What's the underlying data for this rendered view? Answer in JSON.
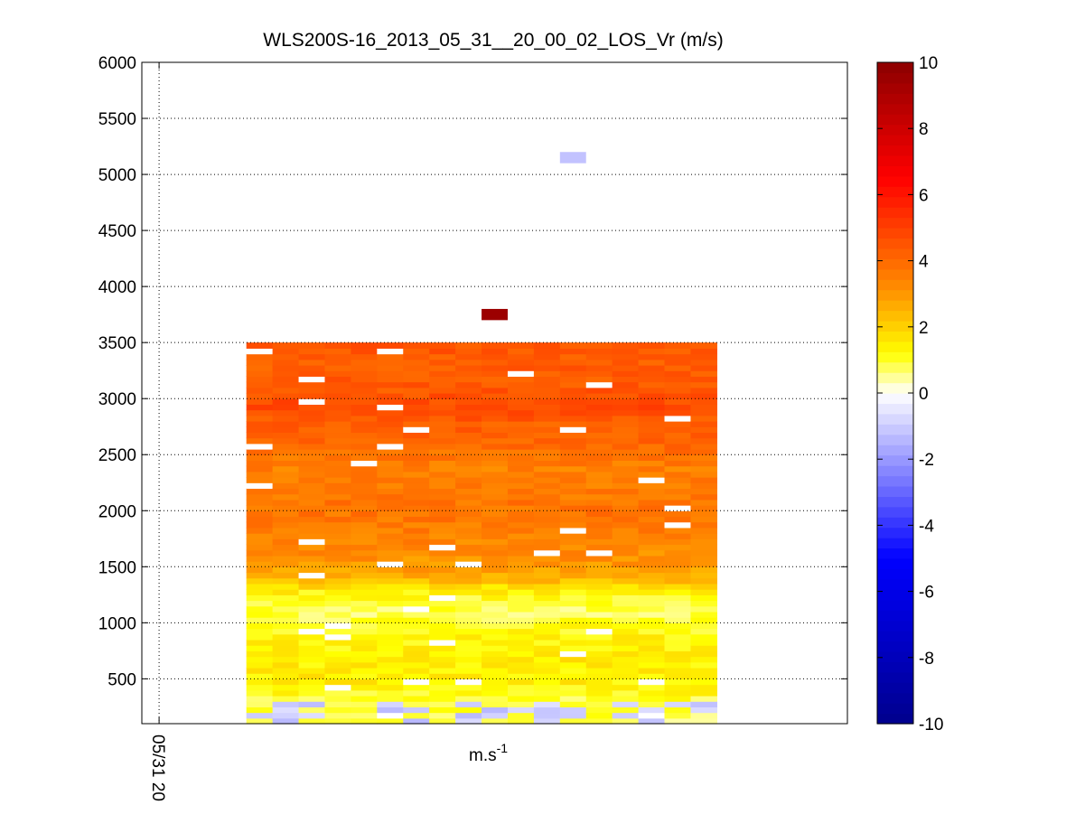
{
  "chart_data": {
    "type": "heatmap",
    "title": "WLS200S-16_2013_05_31__20_00_02_LOS_Vr (m/s)",
    "xlabel": "m.s",
    "xlabel_superscript": "-1",
    "x_tick_labels": [
      "05/31 20"
    ],
    "y_tick_labels": [
      "500",
      "1000",
      "1500",
      "2000",
      "2500",
      "3000",
      "3500",
      "4000",
      "4500",
      "5000",
      "5500",
      "6000"
    ],
    "ylim": [
      100,
      6000
    ],
    "grid": true,
    "colormap": "blue-white-yellow-red",
    "colorbar": {
      "range": [
        -10,
        10
      ],
      "tick_labels": [
        "10",
        "8",
        "6",
        "4",
        "2",
        "0",
        "-2",
        "-4",
        "-6",
        "-8",
        "-10"
      ]
    },
    "n_columns": 18,
    "columns_start_index": 4,
    "columns_end_index": 21,
    "columns_total": 27,
    "profile": [
      {
        "y": 200,
        "v": 0.8
      },
      {
        "y": 300,
        "v": 0.9
      },
      {
        "y": 400,
        "v": 1.3
      },
      {
        "y": 500,
        "v": 1.5
      },
      {
        "y": 600,
        "v": 1.4
      },
      {
        "y": 700,
        "v": 1.6
      },
      {
        "y": 800,
        "v": 1.3
      },
      {
        "y": 900,
        "v": 1.3
      },
      {
        "y": 1000,
        "v": 1.0
      },
      {
        "y": 1100,
        "v": 0.8
      },
      {
        "y": 1200,
        "v": 1.0
      },
      {
        "y": 1300,
        "v": 1.5
      },
      {
        "y": 1400,
        "v": 2.6
      },
      {
        "y": 1500,
        "v": 3.0
      },
      {
        "y": 1600,
        "v": 3.2
      },
      {
        "y": 1800,
        "v": 3.5
      },
      {
        "y": 2000,
        "v": 3.8
      },
      {
        "y": 2200,
        "v": 3.6
      },
      {
        "y": 2400,
        "v": 3.5
      },
      {
        "y": 2600,
        "v": 4.1
      },
      {
        "y": 2800,
        "v": 4.3
      },
      {
        "y": 2900,
        "v": 4.9
      },
      {
        "y": 3100,
        "v": 4.4
      },
      {
        "y": 3300,
        "v": 4.3
      },
      {
        "y": 3500,
        "v": 4.5
      }
    ],
    "outlier_cells": [
      {
        "col": 13,
        "y0": 3700,
        "y1": 3800,
        "v": 9.5
      },
      {
        "col": 16,
        "y0": 5100,
        "y1": 5200,
        "v": -1.2
      }
    ]
  }
}
